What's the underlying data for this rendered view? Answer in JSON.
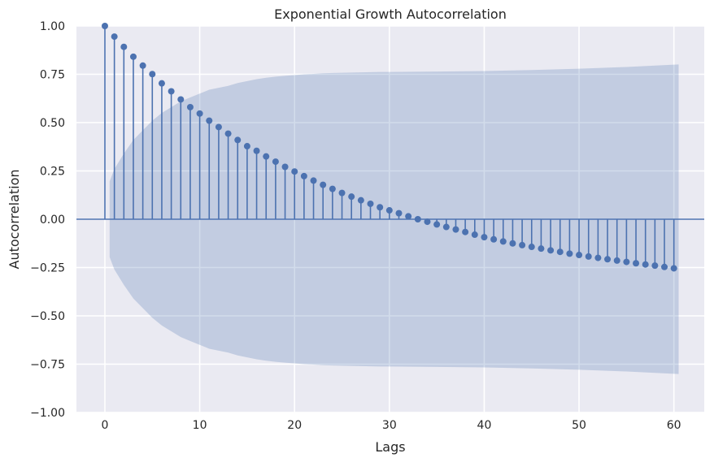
{
  "chart_data": {
    "type": "stem",
    "title": "Exponential Growth Autocorrelation",
    "xlabel": "Lags",
    "ylabel": "Autocorrelation",
    "xlim": [
      -3,
      63.2
    ],
    "ylim": [
      -1.0,
      1.0
    ],
    "xticks": [
      0,
      10,
      20,
      30,
      40,
      50,
      60
    ],
    "xtick_labels": [
      "0",
      "10",
      "20",
      "30",
      "40",
      "50",
      "60"
    ],
    "yticks": [
      -1.0,
      -0.75,
      -0.5,
      -0.25,
      0.0,
      0.25,
      0.5,
      0.75,
      1.0
    ],
    "ytick_labels": [
      "−1.00",
      "−0.75",
      "−0.50",
      "−0.25",
      "0.00",
      "0.25",
      "0.50",
      "0.75",
      "1.00"
    ],
    "grid": true,
    "lags": [
      0,
      1,
      2,
      3,
      4,
      5,
      6,
      7,
      8,
      9,
      10,
      11,
      12,
      13,
      14,
      15,
      16,
      17,
      18,
      19,
      20,
      21,
      22,
      23,
      24,
      25,
      26,
      27,
      28,
      29,
      30,
      31,
      32,
      33,
      34,
      35,
      36,
      37,
      38,
      39,
      40,
      41,
      42,
      43,
      44,
      45,
      46,
      47,
      48,
      49,
      50,
      51,
      52,
      53,
      54,
      55,
      56,
      57,
      58,
      59,
      60
    ],
    "values": [
      1.0,
      0.945,
      0.892,
      0.841,
      0.795,
      0.751,
      0.703,
      0.662,
      0.62,
      0.58,
      0.547,
      0.51,
      0.477,
      0.443,
      0.41,
      0.378,
      0.354,
      0.325,
      0.298,
      0.271,
      0.247,
      0.223,
      0.2,
      0.178,
      0.157,
      0.136,
      0.117,
      0.098,
      0.08,
      0.062,
      0.046,
      0.031,
      0.015,
      0.0,
      -0.013,
      -0.027,
      -0.04,
      -0.053,
      -0.066,
      -0.08,
      -0.093,
      -0.104,
      -0.115,
      -0.125,
      -0.134,
      -0.143,
      -0.152,
      -0.161,
      -0.169,
      -0.178,
      -0.185,
      -0.193,
      -0.2,
      -0.207,
      -0.214,
      -0.221,
      -0.228,
      -0.234,
      -0.24,
      -0.247,
      -0.254
    ],
    "confidence_band": {
      "lags": [
        0.5,
        1,
        2,
        3,
        4,
        5,
        6,
        7,
        8,
        9,
        10,
        11,
        12,
        13,
        14,
        15,
        16,
        17,
        18,
        19,
        20,
        21,
        22,
        23,
        24,
        25,
        26,
        27,
        28,
        29,
        30,
        35,
        40,
        45,
        50,
        55,
        60,
        60.5
      ],
      "upper": [
        0.196,
        0.26,
        0.34,
        0.41,
        0.46,
        0.51,
        0.55,
        0.58,
        0.61,
        0.63,
        0.65,
        0.67,
        0.68,
        0.69,
        0.705,
        0.715,
        0.725,
        0.732,
        0.738,
        0.742,
        0.746,
        0.75,
        0.752,
        0.755,
        0.757,
        0.758,
        0.759,
        0.76,
        0.761,
        0.762,
        0.762,
        0.764,
        0.767,
        0.772,
        0.779,
        0.788,
        0.8,
        0.801
      ]
    },
    "colors": {
      "stem": "#4c72b0",
      "band": "#4c72b0",
      "background": "#eaeaf2",
      "grid": "#ffffff"
    }
  }
}
